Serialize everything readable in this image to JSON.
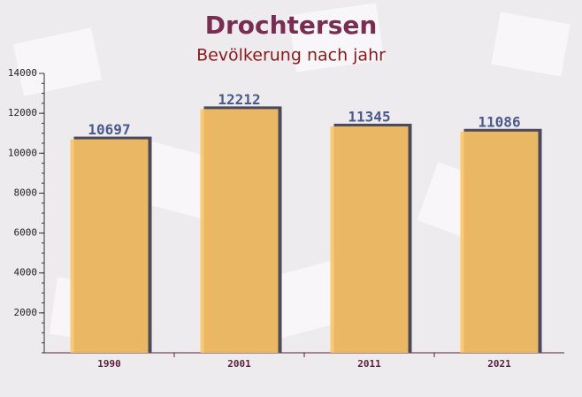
{
  "chart_data": {
    "type": "bar",
    "title": "Drochtersen",
    "subtitle": "Bevölkerung nach jahr",
    "categories": [
      "1990",
      "2001",
      "2011",
      "2021"
    ],
    "values": [
      10697,
      12212,
      11345,
      11086
    ],
    "color": "#fcc465",
    "ylim": [
      0,
      14000
    ],
    "yticks": [
      2000,
      4000,
      6000,
      8000,
      10000,
      12000,
      14000
    ]
  }
}
